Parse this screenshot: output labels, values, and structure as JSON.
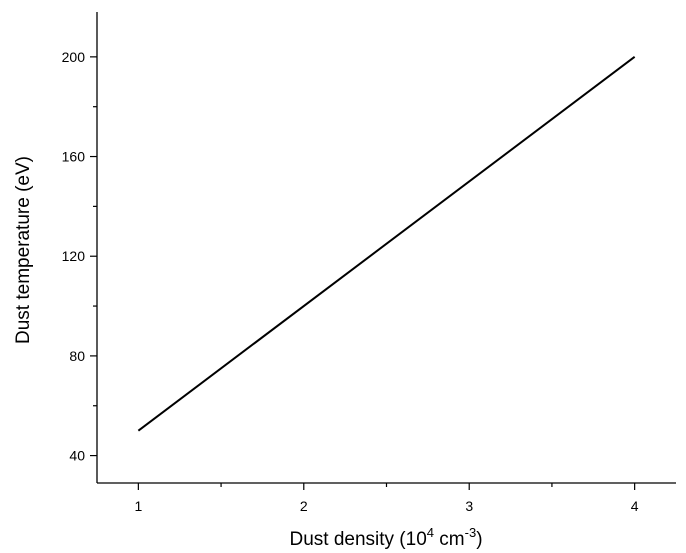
{
  "chart_data": {
    "type": "line",
    "title": "",
    "xlabel": "Dust density (10^4 cm^-3)",
    "xlabel_parts": {
      "base": "Dust density (10",
      "exp1": "4",
      "mid": " cm",
      "exp2": "-3",
      "end": ")"
    },
    "ylabel": "Dust temperature (eV)",
    "xlim": [
      0.75,
      4.25
    ],
    "ylim": [
      29,
      218
    ],
    "x_major_ticks": [
      1,
      2,
      3,
      4
    ],
    "x_minor_ticks": [
      1.5,
      2.5,
      3.5
    ],
    "y_major_ticks": [
      40,
      80,
      120,
      160,
      200
    ],
    "y_minor_ticks": [
      60,
      100,
      140,
      180
    ],
    "x_tick_labels": [
      "1",
      "2",
      "3",
      "4"
    ],
    "y_tick_labels": [
      "40",
      "80",
      "120",
      "160",
      "200"
    ],
    "grid": false,
    "legend": "none",
    "series": [
      {
        "x": [
          1,
          4
        ],
        "y": [
          50,
          200
        ],
        "color": "#000000"
      }
    ]
  }
}
